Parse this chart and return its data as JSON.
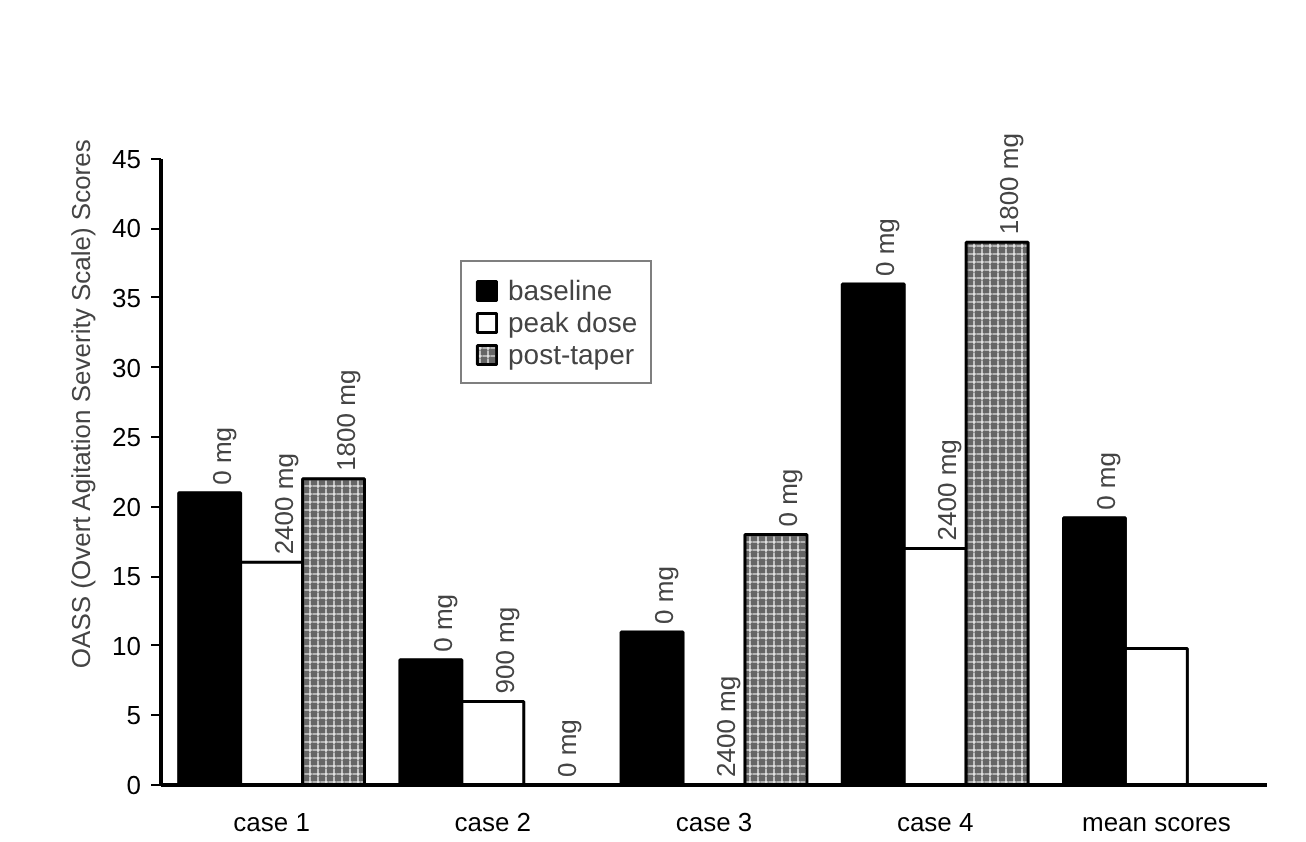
{
  "chart_data": {
    "type": "bar",
    "ylabel": "OASS (Overt Agitation Severity Scale) Scores",
    "categories": [
      "case 1",
      "case 2",
      "case 3",
      "case 4",
      "mean scores"
    ],
    "series": [
      {
        "name": "baseline",
        "color": "#000000",
        "values": [
          21,
          9,
          11,
          36,
          19.2
        ]
      },
      {
        "name": "peak dose",
        "color": "#ffffff",
        "values": [
          16,
          6,
          0,
          17,
          9.8
        ]
      },
      {
        "name": "post-taper",
        "color": "#666666",
        "values": [
          22,
          0,
          18,
          39,
          null
        ]
      }
    ],
    "annotations": [
      "0 mg",
      "2400 mg",
      "1800 mg",
      "0 mg",
      "900 mg",
      "0 mg",
      "0 mg",
      "2400 mg",
      "0 mg",
      "0 mg",
      "2400 mg",
      "1800 mg",
      "0 mg"
    ],
    "ylim": [
      0,
      45
    ],
    "yticks": [
      0,
      5,
      10,
      15,
      20,
      25,
      30,
      35,
      40,
      45
    ],
    "grid": false,
    "legend": "top"
  }
}
